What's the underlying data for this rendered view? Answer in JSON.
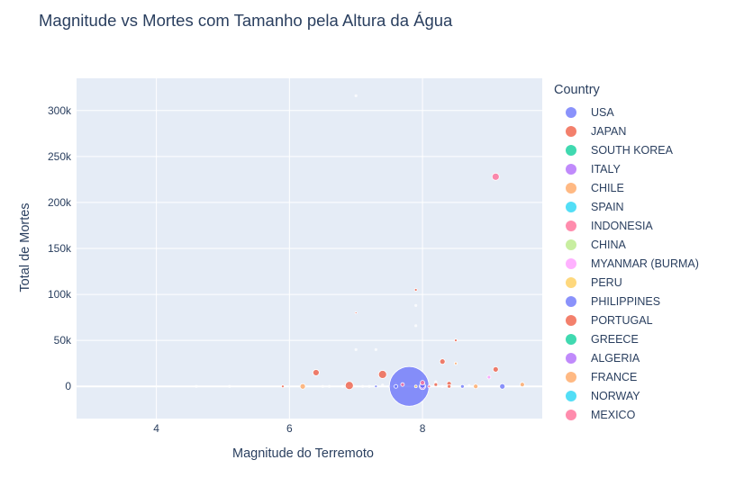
{
  "chart_data": {
    "type": "scatter",
    "title": "Magnitude vs Mortes com Tamanho pela Altura da Água",
    "xlabel": "Magnitude do Terremoto",
    "ylabel": "Total de Mortes",
    "xlim": [
      2.8,
      9.8
    ],
    "ylim": [
      -35000,
      335000
    ],
    "x_ticks": [
      4,
      6,
      8
    ],
    "x_tick_labels": [
      "4",
      "6",
      "8"
    ],
    "y_ticks": [
      0,
      50000,
      100000,
      150000,
      200000,
      250000,
      300000
    ],
    "y_tick_labels": [
      "0",
      "50k",
      "100k",
      "150k",
      "200k",
      "250k",
      "300k"
    ],
    "grid": true,
    "legend_title": "Country",
    "legend_position": "right",
    "series": [
      {
        "name": "USA",
        "color": "#636efa",
        "points": [
          {
            "x": 7.8,
            "y": 0,
            "size": 44
          },
          {
            "x": 9.2,
            "y": 0,
            "size": 6
          },
          {
            "x": 8.6,
            "y": 0,
            "size": 4
          },
          {
            "x": 7.6,
            "y": 0,
            "size": 4
          },
          {
            "x": 7.3,
            "y": 0,
            "size": 3
          }
        ]
      },
      {
        "name": "JAPAN",
        "color": "#EF553B",
        "points": [
          {
            "x": 6.9,
            "y": 1000,
            "size": 9
          },
          {
            "x": 7.4,
            "y": 13000,
            "size": 9
          },
          {
            "x": 6.4,
            "y": 15000,
            "size": 7
          },
          {
            "x": 8.3,
            "y": 27000,
            "size": 6
          },
          {
            "x": 9.1,
            "y": 18500,
            "size": 6
          },
          {
            "x": 8.4,
            "y": 3000,
            "size": 5
          },
          {
            "x": 8.5,
            "y": 50000,
            "size": 3
          },
          {
            "x": 7.9,
            "y": 105000,
            "size": 3
          },
          {
            "x": 7.0,
            "y": 80000,
            "size": 2
          },
          {
            "x": 8.2,
            "y": 2000,
            "size": 4
          },
          {
            "x": 5.9,
            "y": 0,
            "size": 3
          }
        ]
      },
      {
        "name": "SOUTH KOREA",
        "color": "#00cc96",
        "points": []
      },
      {
        "name": "ITALY",
        "color": "#ab63fa",
        "points": [
          {
            "x": 8.0,
            "y": 0,
            "size": 7
          }
        ]
      },
      {
        "name": "CHILE",
        "color": "#FFA15A",
        "points": [
          {
            "x": 6.2,
            "y": 0,
            "size": 6
          },
          {
            "x": 9.5,
            "y": 2000,
            "size": 5
          },
          {
            "x": 8.8,
            "y": 0,
            "size": 5
          },
          {
            "x": 8.5,
            "y": 25000,
            "size": 3
          }
        ]
      },
      {
        "name": "SPAIN",
        "color": "#19d3f3",
        "points": []
      },
      {
        "name": "INDONESIA",
        "color": "#FF6692",
        "points": [
          {
            "x": 9.1,
            "y": 228000,
            "size": 8
          },
          {
            "x": 8.0,
            "y": 4000,
            "size": 5
          },
          {
            "x": 7.7,
            "y": 2000,
            "size": 4
          }
        ]
      },
      {
        "name": "CHINA",
        "color": "#B6E880",
        "points": []
      },
      {
        "name": "MYANMAR (BURMA)",
        "color": "#FF97FF",
        "points": [
          {
            "x": 9.0,
            "y": 10000,
            "size": 4
          }
        ]
      },
      {
        "name": "PERU",
        "color": "#FECB52",
        "points": [
          {
            "x": 7.9,
            "y": 0,
            "size": 3
          }
        ]
      },
      {
        "name": "PHILIPPINES",
        "color": "#636efa",
        "points": [
          {
            "x": 8.0,
            "y": 1000,
            "size": 6
          }
        ]
      },
      {
        "name": "PORTUGAL",
        "color": "#EF553B",
        "points": [
          {
            "x": 8.4,
            "y": 0,
            "size": 4
          }
        ]
      },
      {
        "name": "GREECE",
        "color": "#00cc96",
        "points": []
      },
      {
        "name": "ALGERIA",
        "color": "#ab63fa",
        "points": []
      },
      {
        "name": "FRANCE",
        "color": "#FFA15A",
        "points": []
      },
      {
        "name": "NORWAY",
        "color": "#19d3f3",
        "points": []
      },
      {
        "name": "MEXICO",
        "color": "#FF6692",
        "points": [
          {
            "x": 8.1,
            "y": 0,
            "size": 3
          }
        ]
      }
    ],
    "faint_points": [
      {
        "x": 7.0,
        "y": 316000
      },
      {
        "x": 7.3,
        "y": 40000
      },
      {
        "x": 7.0,
        "y": 40000
      },
      {
        "x": 7.9,
        "y": 66000
      },
      {
        "x": 7.9,
        "y": 88000
      },
      {
        "x": 6.6,
        "y": 0
      },
      {
        "x": 6.8,
        "y": 0
      },
      {
        "x": 7.1,
        "y": 0
      },
      {
        "x": 7.2,
        "y": 0
      },
      {
        "x": 7.5,
        "y": 0
      },
      {
        "x": 5.1,
        "y": 0
      },
      {
        "x": 4.6,
        "y": 0
      },
      {
        "x": 7.6,
        "y": 3000
      },
      {
        "x": 8.2,
        "y": 5000
      },
      {
        "x": 8.7,
        "y": 1000
      },
      {
        "x": 7.4,
        "y": 1500
      },
      {
        "x": 6.5,
        "y": 0
      },
      {
        "x": 8.3,
        "y": 0
      }
    ]
  }
}
